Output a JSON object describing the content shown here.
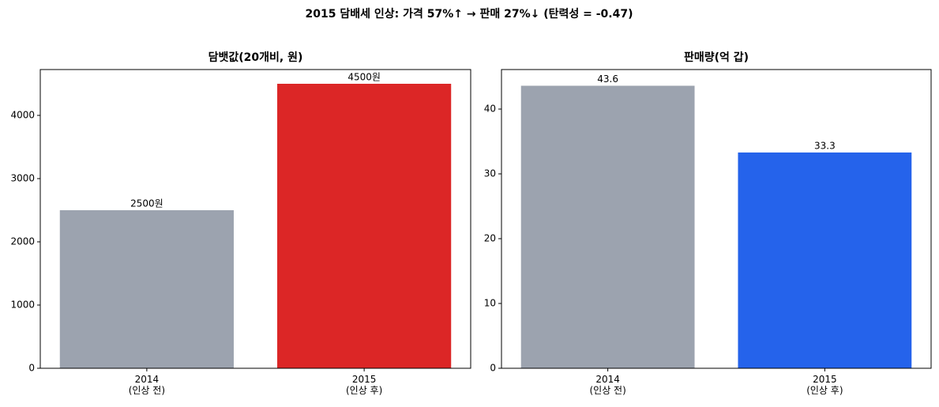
{
  "suptitle": "2015 담배세 인상: 가격 57%↑ → 판매 27%↓  (탄력성 = -0.47)",
  "chart_data": [
    {
      "type": "bar",
      "title": "담뱃값(20개비, 원)",
      "categories": [
        "2014\n(인상 전)",
        "2015\n(인상 후)"
      ],
      "values": [
        2500,
        4500
      ],
      "value_labels": [
        "2500원",
        "4500원"
      ],
      "colors": [
        "#9ca3af",
        "#dc2626"
      ],
      "ylim": [
        0,
        4725
      ],
      "yticks": [
        0,
        1000,
        2000,
        3000,
        4000
      ]
    },
    {
      "type": "bar",
      "title": "판매량(억 갑)",
      "categories": [
        "2014\n(인상 전)",
        "2015\n(인상 후)"
      ],
      "values": [
        43.6,
        33.3
      ],
      "colors": [
        "#9ca3af",
        "#2563eb"
      ],
      "ylim": [
        0,
        46.1
      ],
      "yticks": [
        0,
        10,
        20,
        30,
        40
      ]
    }
  ]
}
